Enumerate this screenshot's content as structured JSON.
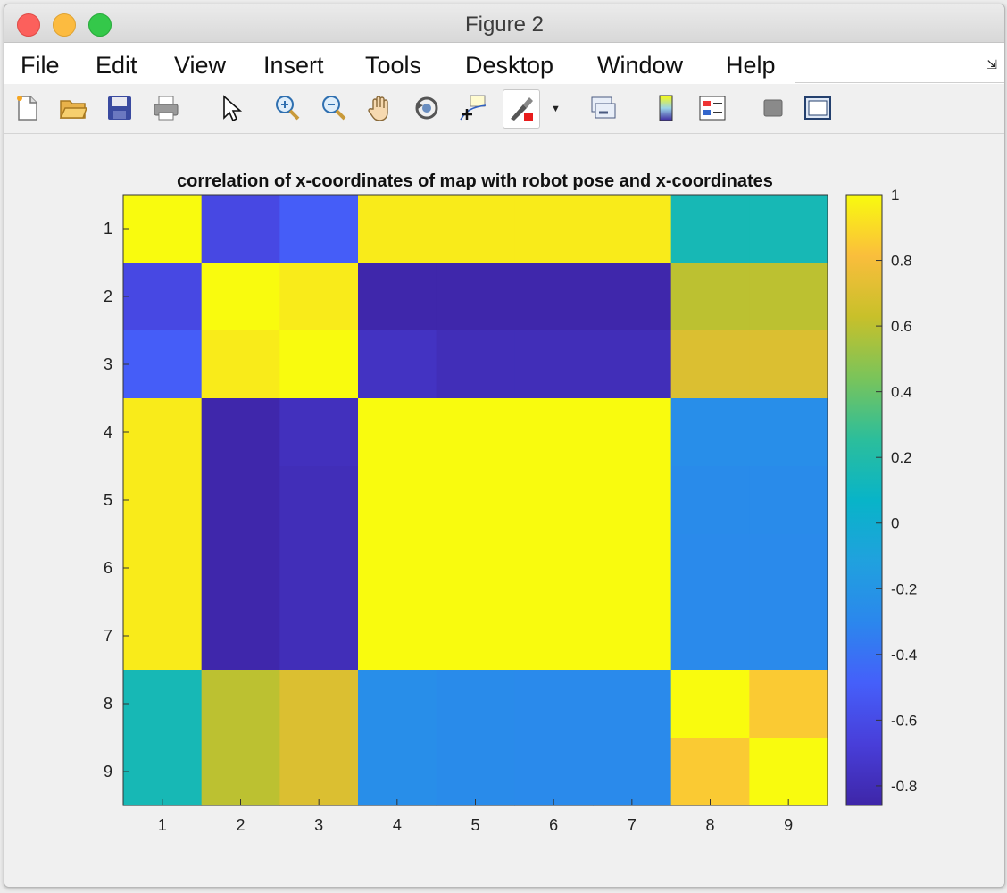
{
  "window": {
    "title": "Figure 2"
  },
  "menu": [
    "File",
    "Edit",
    "View",
    "Insert",
    "Tools",
    "Desktop",
    "Window",
    "Help"
  ],
  "toolbar": {
    "icons": [
      "new-figure",
      "open-file",
      "save",
      "print",
      "pointer",
      "zoom-in",
      "zoom-out",
      "pan-hand",
      "rotate-3d",
      "data-cursor",
      "brush",
      "brush-dropdown",
      "link-plot",
      "colorbar",
      "legend",
      "hide-plot-tools",
      "show-plot-tools"
    ]
  },
  "chart_data": {
    "type": "heatmap",
    "title": "correlation of x-coordinates of map with robot pose and x-coordinates",
    "x_ticks": [
      "1",
      "2",
      "3",
      "4",
      "5",
      "6",
      "7",
      "8",
      "9"
    ],
    "y_ticks": [
      "1",
      "2",
      "3",
      "4",
      "5",
      "6",
      "7",
      "8",
      "9"
    ],
    "values": [
      [
        1.0,
        -0.62,
        -0.5,
        0.95,
        0.95,
        0.95,
        0.95,
        0.15,
        0.15
      ],
      [
        -0.62,
        1.0,
        0.95,
        -0.85,
        -0.85,
        -0.85,
        -0.85,
        0.6,
        0.6
      ],
      [
        -0.5,
        0.95,
        1.0,
        -0.76,
        -0.8,
        -0.8,
        -0.8,
        0.7,
        0.7
      ],
      [
        0.95,
        -0.85,
        -0.78,
        1.0,
        1.0,
        1.0,
        1.0,
        -0.25,
        -0.25
      ],
      [
        0.95,
        -0.85,
        -0.8,
        1.0,
        1.0,
        1.0,
        1.0,
        -0.27,
        -0.27
      ],
      [
        0.95,
        -0.85,
        -0.8,
        1.0,
        1.0,
        1.0,
        1.0,
        -0.28,
        -0.28
      ],
      [
        0.95,
        -0.85,
        -0.8,
        1.0,
        1.0,
        1.0,
        1.0,
        -0.28,
        -0.28
      ],
      [
        0.15,
        0.6,
        0.7,
        -0.25,
        -0.27,
        -0.28,
        -0.28,
        1.0,
        0.85
      ],
      [
        0.15,
        0.6,
        0.7,
        -0.25,
        -0.27,
        -0.28,
        -0.28,
        0.85,
        1.0
      ]
    ],
    "colorbar": {
      "ticks": [
        1,
        0.8,
        0.6,
        0.4,
        0.2,
        0,
        -0.2,
        -0.4,
        -0.6,
        -0.8
      ],
      "tick_labels": [
        "1",
        "0.8",
        "0.6",
        "0.4",
        "0.2",
        "0",
        "-0.2",
        "-0.4",
        "-0.6",
        "-0.8"
      ],
      "clim": [
        -0.86,
        1.0
      ],
      "colormap": "parula"
    }
  }
}
